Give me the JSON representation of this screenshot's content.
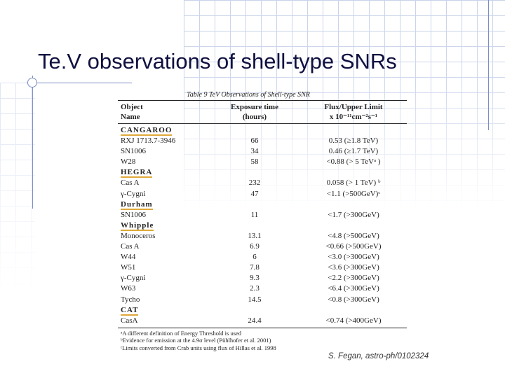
{
  "slide": {
    "title": "Te.V observations of shell-type SNRs",
    "credit": "S. Fegan, astro-ph/0102324"
  },
  "table": {
    "caption": "Table 9  TeV Observations of Shell-type SNR",
    "headers": {
      "c1a": "Object",
      "c1b": "Name",
      "c2a": "Exposure time",
      "c2b": "(hours)",
      "c3a": "Flux/Upper Limit",
      "c3b": "x 10⁻¹¹cm⁻²s⁻¹"
    },
    "rows": [
      {
        "group": "CANGAROO"
      },
      {
        "name": "RXJ 1713.7-3946",
        "exposure": "66",
        "flux": "0.53 (≥1.8 TeV)"
      },
      {
        "name": "SN1006",
        "exposure": "34",
        "flux": "0.46 (≥1.7 TeV)"
      },
      {
        "name": "W28",
        "exposure": "58",
        "flux": "<0.88 (> 5 TeVᵃ )"
      },
      {
        "group": "HEGRA"
      },
      {
        "name": "Cas A",
        "exposure": "232",
        "flux": "0.058 (> 1 TeV) ᵇ"
      },
      {
        "name": "γ-Cygni",
        "exposure": "47",
        "flux": "<1.1 (>500GeV)ᶜ"
      },
      {
        "group": "Durham"
      },
      {
        "name": "SN1006",
        "exposure": "11",
        "flux": "<1.7 (>300GeV)"
      },
      {
        "group": "Whipple"
      },
      {
        "name": "Monoceros",
        "exposure": "13.1",
        "flux": "<4.8 (>500GeV)"
      },
      {
        "name": "Cas A",
        "exposure": "6.9",
        "flux": "<0.66 (>500GeV)"
      },
      {
        "name": "W44",
        "exposure": "6",
        "flux": "<3.0 (>300GeV)"
      },
      {
        "name": "W51",
        "exposure": "7.8",
        "flux": "<3.6 (>300GeV)"
      },
      {
        "name": "γ-Cygni",
        "exposure": "9.3",
        "flux": "<2.2 (>300GeV)"
      },
      {
        "name": "W63",
        "exposure": "2.3",
        "flux": "<6.4 (>300GeV)"
      },
      {
        "name": "Tycho",
        "exposure": "14.5",
        "flux": "<0.8 (>300GeV)"
      },
      {
        "group": "CAT"
      },
      {
        "name": "CasA",
        "exposure": "24.4",
        "flux": "<0.74 (>400GeV)"
      }
    ],
    "footnotes": [
      "ᵃA different definition of Energy Threshold is used",
      "ᵇEvidence for emission at the 4.9σ level (Pühlhofer et al. 2001)",
      "ᶜLimits converted from Crab units using flux of Hillas et al. 1998"
    ]
  }
}
